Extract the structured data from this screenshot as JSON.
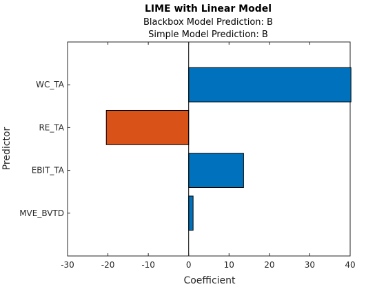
{
  "chart_data": {
    "type": "bar",
    "orientation": "horizontal",
    "title": "LIME with Linear Model",
    "subtitle_lines": [
      "Blackbox Model Prediction: B",
      "Simple Model Prediction: B"
    ],
    "xlabel": "Coefficient",
    "ylabel": "Predictor",
    "xlim": [
      -30,
      40
    ],
    "xticks": [
      -30,
      -20,
      -10,
      0,
      10,
      20,
      30,
      40
    ],
    "categories": [
      "WC_TA",
      "RE_TA",
      "EBIT_TA",
      "MVE_BVTD"
    ],
    "values": [
      40.2,
      -20.4,
      13.6,
      1.1
    ],
    "colors": {
      "positive": "#0072BD",
      "negative": "#D95319",
      "axis": "#262626"
    },
    "grid": false
  }
}
